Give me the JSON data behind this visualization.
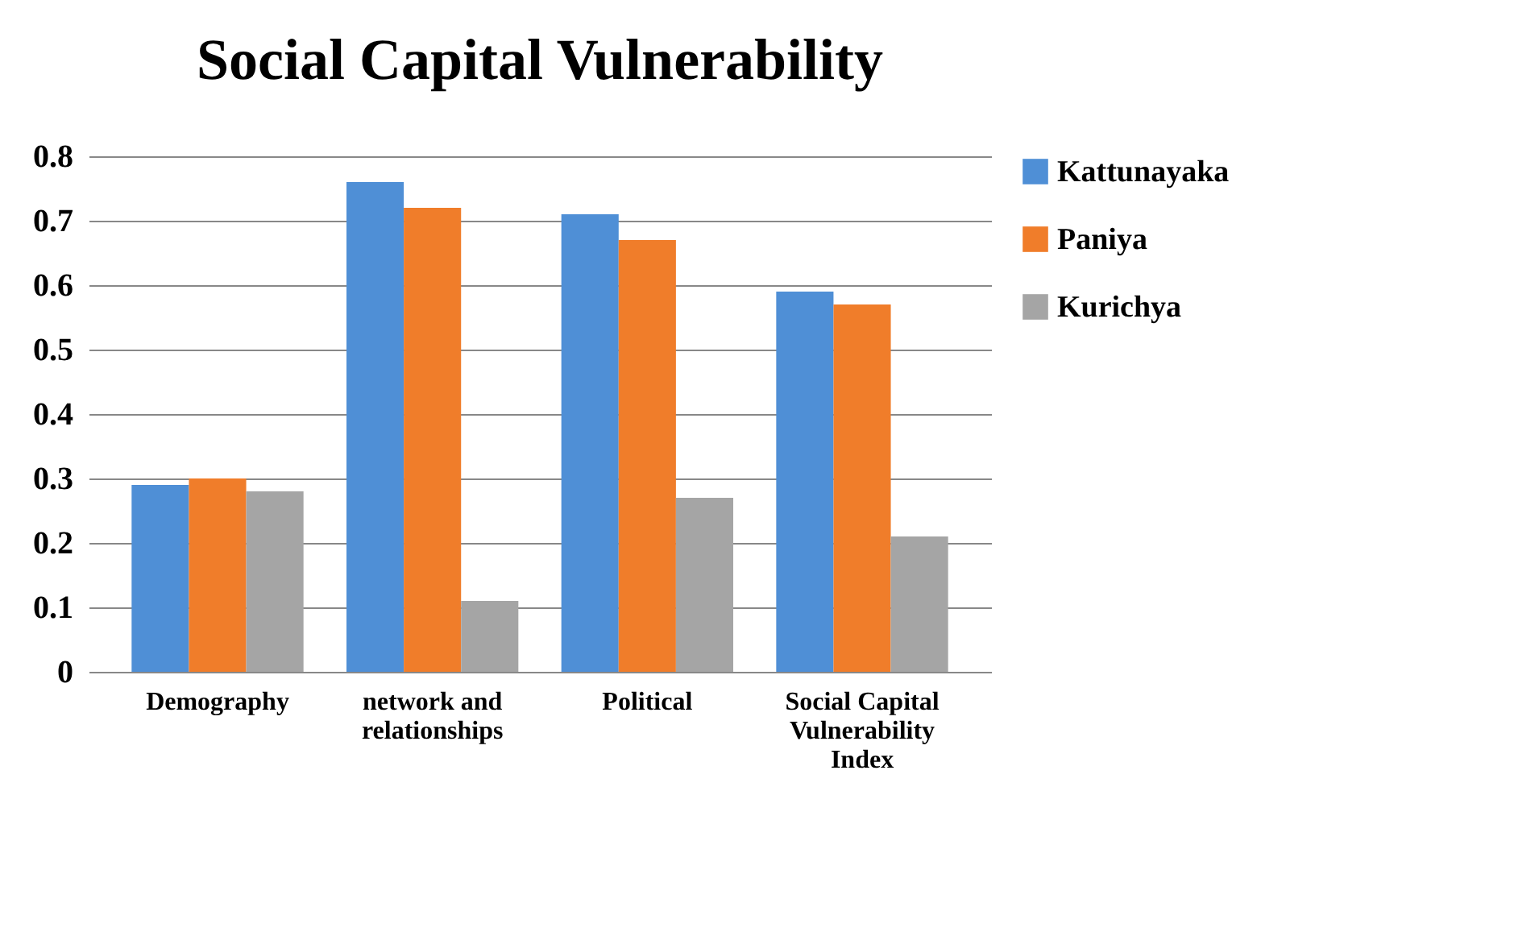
{
  "chart_data": {
    "type": "bar",
    "title": "Social Capital Vulnerability",
    "categories": [
      "Demography",
      "network and relationships",
      "Political",
      "Social Capital Vulnerability Index"
    ],
    "series": [
      {
        "name": "Kattunayaka",
        "color": "#4f8fd6",
        "values": [
          0.29,
          0.76,
          0.71,
          0.59
        ]
      },
      {
        "name": "Paniya",
        "color": "#f07d2a",
        "values": [
          0.3,
          0.72,
          0.67,
          0.57
        ]
      },
      {
        "name": "Kurichya",
        "color": "#a5a5a5",
        "values": [
          0.28,
          0.11,
          0.27,
          0.21
        ]
      }
    ],
    "ylim": [
      0,
      0.8
    ],
    "yticks": [
      0,
      0.1,
      0.2,
      0.3,
      0.4,
      0.5,
      0.6,
      0.7,
      0.8
    ],
    "grid": "y",
    "legend": "right"
  }
}
